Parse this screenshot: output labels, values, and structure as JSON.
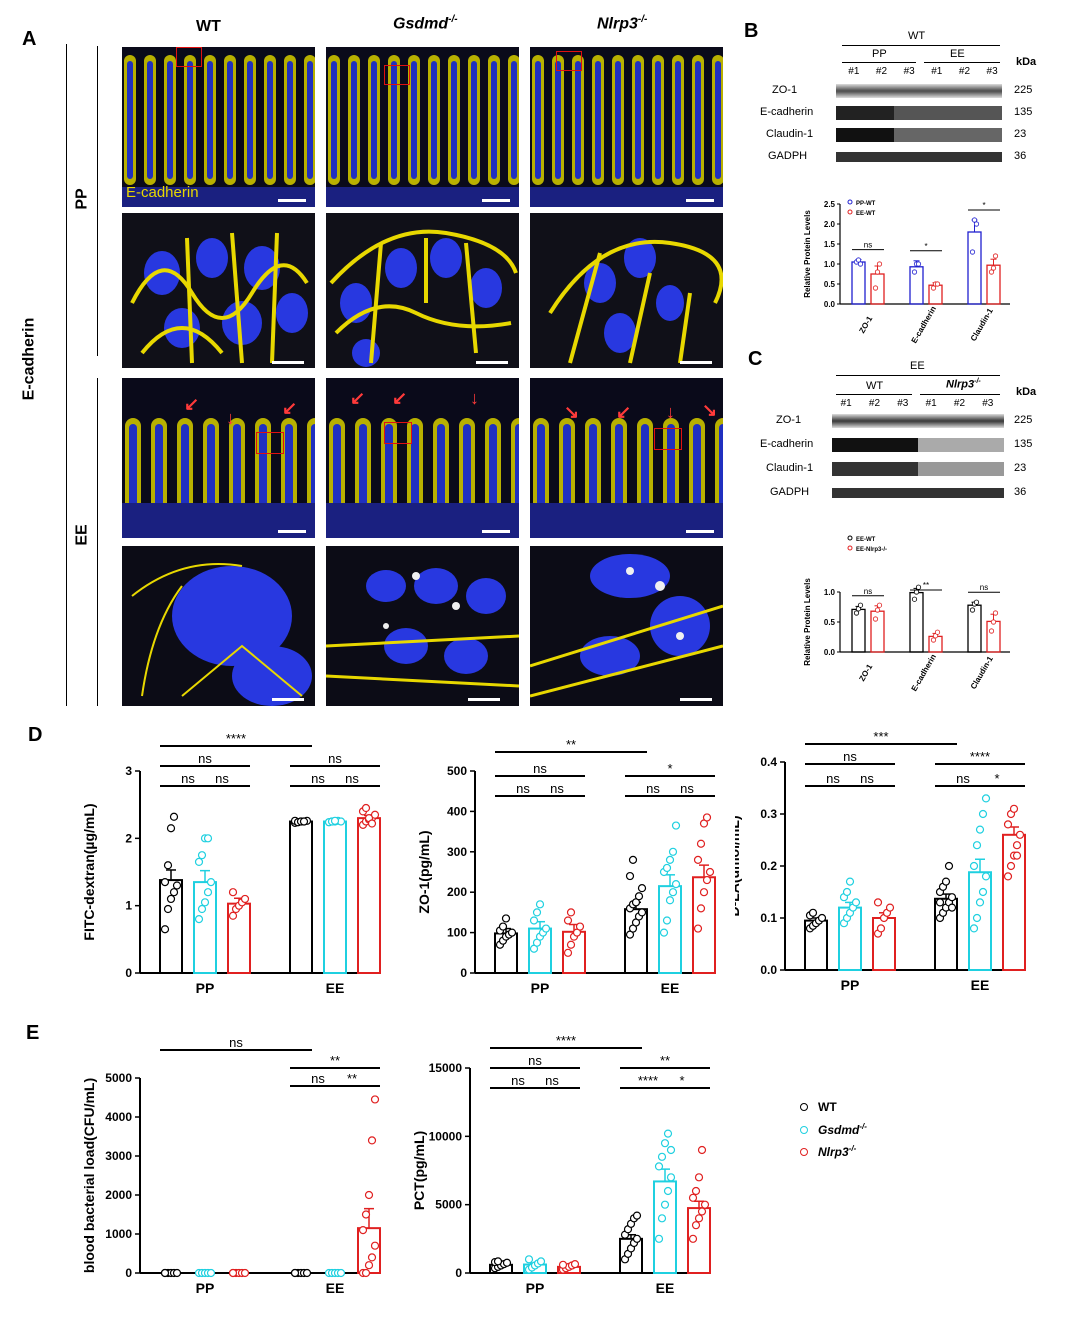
{
  "panels": {
    "A": "A",
    "B": "B",
    "C": "C",
    "D": "D",
    "E": "E"
  },
  "panelA": {
    "columns": [
      "WT",
      "Gsdmd",
      "Nlrp3"
    ],
    "col_sup": "-/-",
    "rows": [
      "PP",
      "EE"
    ],
    "side_label": "E-cadherin",
    "stain_label": "E-cadherin",
    "colors": {
      "stain": "#e8d800",
      "nuclei": "#2030d0",
      "roi": "#e01010",
      "arrow": "#ff3a3a"
    }
  },
  "panelB": {
    "group": "WT",
    "subgroups": [
      "PP",
      "EE"
    ],
    "lanes": [
      "#1",
      "#2",
      "#3",
      "#1",
      "#2",
      "#3"
    ],
    "kda": "kDa",
    "proteins": [
      {
        "name": "ZO-1",
        "kda": "225"
      },
      {
        "name": "E-cadherin",
        "kda": "135"
      },
      {
        "name": "Claudin-1",
        "kda": "23"
      },
      {
        "name": "GADPH",
        "kda": "36"
      }
    ]
  },
  "panelC": {
    "group": "EE",
    "subgroups": [
      "WT",
      "Nlrp3"
    ],
    "lanes": [
      "#1",
      "#2",
      "#3",
      "#1",
      "#2",
      "#3"
    ],
    "kda": "kDa",
    "proteins": [
      {
        "name": "ZO-1",
        "kda": "225"
      },
      {
        "name": "E-cadherin",
        "kda": "135"
      },
      {
        "name": "Claudin-1",
        "kda": "23"
      },
      {
        "name": "GADPH",
        "kda": "36"
      }
    ]
  },
  "legend_E": {
    "items": [
      {
        "name": "WT",
        "color": "#000000"
      },
      {
        "name": "Gsdmd",
        "sup": "-/-",
        "color": "#1fd0e0"
      },
      {
        "name": "Nlrp3",
        "sup": "-/-",
        "color": "#e02020"
      }
    ]
  },
  "chart_data": [
    {
      "id": "B-bar",
      "type": "bar",
      "ylabel": "Relative Protein Levels",
      "ylim": [
        0,
        2.5
      ],
      "yticks": [
        "0.0",
        "0.5",
        "1.0",
        "1.5",
        "2.0",
        "2.5"
      ],
      "categories": [
        "ZO-1",
        "E-cadherin",
        "Claudin-1"
      ],
      "series": [
        {
          "name": "PP-WT",
          "color": "#2020d0",
          "values": [
            1.05,
            0.93,
            1.8
          ],
          "err": [
            0.06,
            0.15,
            0.3
          ],
          "points": [
            [
              1.05,
              1.1,
              1.0
            ],
            [
              0.8,
              1.0,
              1.0
            ],
            [
              1.3,
              2.1,
              2.0
            ]
          ]
        },
        {
          "name": "EE-WT",
          "color": "#e02020",
          "values": [
            0.75,
            0.47,
            0.97
          ],
          "err": [
            0.2,
            0.06,
            0.15
          ],
          "points": [
            [
              0.4,
              0.8,
              1.0
            ],
            [
              0.4,
              0.5,
              0.5
            ],
            [
              0.8,
              0.9,
              1.2
            ]
          ]
        }
      ],
      "sig": [
        "ns",
        "*",
        "*"
      ]
    },
    {
      "id": "C-bar",
      "type": "bar",
      "ylabel": "Relative Protein Levels",
      "ylim": [
        0,
        1.0
      ],
      "yticks": [
        "0.0",
        "0.5",
        "1.0"
      ],
      "categories": [
        "ZO-1",
        "E-cadherin",
        "Claudin-1"
      ],
      "series": [
        {
          "name": "EE-WT",
          "color": "#000000",
          "values": [
            0.71,
            0.99,
            0.78
          ],
          "err": [
            0.05,
            0.07,
            0.05
          ],
          "points": [
            [
              0.65,
              0.72,
              0.78
            ],
            [
              0.88,
              1.0,
              1.08
            ],
            [
              0.7,
              0.8,
              0.83
            ]
          ]
        },
        {
          "name": "EE-Nlrp3",
          "sup": "-/-",
          "color": "#e02020",
          "values": [
            0.68,
            0.26,
            0.51
          ],
          "err": [
            0.09,
            0.05,
            0.12
          ],
          "points": [
            [
              0.55,
              0.7,
              0.78
            ],
            [
              0.2,
              0.27,
              0.33
            ],
            [
              0.35,
              0.5,
              0.65
            ]
          ]
        }
      ],
      "sig": [
        "ns",
        "**",
        "ns"
      ]
    },
    {
      "id": "D1",
      "type": "bar",
      "ylabel": "FITC-dextran(µg/mL)",
      "ylim": [
        0,
        3
      ],
      "yticks": [
        "0",
        "1",
        "2",
        "3"
      ],
      "categories": [
        "PP",
        "EE"
      ],
      "series": [
        {
          "name": "WT",
          "values": [
            1.38,
            2.25
          ],
          "err": [
            0.15,
            0.01
          ],
          "points": [
            [
              0.65,
              0.95,
              1.1,
              1.2,
              1.3,
              1.35,
              1.6,
              2.15,
              2.32
            ],
            [
              2.23,
              2.24,
              2.25,
              2.25,
              2.26,
              2.26,
              2.24,
              2.25,
              2.25
            ]
          ]
        },
        {
          "name": "Gsdmd",
          "values": [
            1.35,
            2.25
          ],
          "err": [
            0.17,
            0.01
          ],
          "points": [
            [
              0.8,
              0.95,
              1.05,
              1.2,
              1.35,
              1.65,
              1.75,
              2.0,
              2.0
            ],
            [
              2.24,
              2.25,
              2.25,
              2.26,
              2.25,
              2.24,
              2.25,
              2.26
            ]
          ]
        },
        {
          "name": "Nlrp3",
          "values": [
            1.03,
            2.3
          ],
          "err": [
            0.08,
            0.04
          ],
          "points": [
            [
              0.85,
              0.95,
              1.0,
              1.05,
              1.1,
              1.2
            ],
            [
              2.2,
              2.25,
              2.28,
              2.3,
              2.35,
              2.4,
              2.45,
              2.3,
              2.22
            ]
          ]
        }
      ],
      "sig_labels": [
        "****",
        "ns",
        "ns",
        "ns",
        "ns",
        "ns",
        "ns"
      ]
    },
    {
      "id": "D2",
      "type": "bar",
      "ylabel": "ZO-1(pg/mL)",
      "ylim": [
        0,
        500
      ],
      "yticks": [
        "0",
        "100",
        "200",
        "300",
        "400",
        "500"
      ],
      "categories": [
        "PP",
        "EE"
      ],
      "series": [
        {
          "name": "WT",
          "values": [
            98,
            158
          ],
          "err": [
            12,
            17
          ],
          "points": [
            [
              70,
              80,
              90,
              95,
              100,
              105,
              115,
              135
            ],
            [
              95,
              110,
              125,
              140,
              150,
              160,
              170,
              175,
              190,
              210,
              240,
              280
            ]
          ]
        },
        {
          "name": "Gsdmd",
          "values": [
            110,
            215
          ],
          "err": [
            17,
            28
          ],
          "points": [
            [
              60,
              75,
              90,
              100,
              110,
              130,
              150,
              170
            ],
            [
              100,
              130,
              180,
              200,
              220,
              250,
              260,
              280,
              300,
              365
            ]
          ]
        },
        {
          "name": "Nlrp3",
          "values": [
            102,
            237
          ],
          "err": [
            18,
            30
          ],
          "points": [
            [
              50,
              70,
              90,
              100,
              115,
              130,
              150
            ],
            [
              110,
              160,
              200,
              230,
              250,
              280,
              320,
              370,
              385
            ]
          ]
        }
      ],
      "sig_labels": [
        "**",
        "ns",
        "ns",
        "ns",
        "*",
        "ns",
        "ns"
      ]
    },
    {
      "id": "D3",
      "type": "bar",
      "ylabel": "D-LA(umol/mL)",
      "ylim": [
        0,
        0.4
      ],
      "yticks": [
        "0.0",
        "0.1",
        "0.2",
        "0.3",
        "0.4"
      ],
      "categories": [
        "PP",
        "EE"
      ],
      "series": [
        {
          "name": "WT",
          "values": [
            0.095,
            0.137
          ],
          "err": [
            0.005,
            0.009
          ],
          "points": [
            [
              0.08,
              0.085,
              0.09,
              0.095,
              0.1,
              0.105,
              0.11
            ],
            [
              0.1,
              0.11,
              0.12,
              0.13,
              0.14,
              0.15,
              0.16,
              0.17,
              0.2,
              0.12,
              0.13
            ]
          ]
        },
        {
          "name": "Gsdmd",
          "values": [
            0.12,
            0.188
          ],
          "err": [
            0.01,
            0.025
          ],
          "points": [
            [
              0.09,
              0.1,
              0.11,
              0.12,
              0.13,
              0.14,
              0.15,
              0.17
            ],
            [
              0.08,
              0.1,
              0.13,
              0.15,
              0.18,
              0.2,
              0.24,
              0.27,
              0.3,
              0.33
            ]
          ]
        },
        {
          "name": "Nlrp3",
          "values": [
            0.1,
            0.26
          ],
          "err": [
            0.01,
            0.015
          ],
          "points": [
            [
              0.07,
              0.08,
              0.1,
              0.11,
              0.12,
              0.13
            ],
            [
              0.18,
              0.2,
              0.22,
              0.24,
              0.26,
              0.28,
              0.3,
              0.31,
              0.22
            ]
          ]
        }
      ],
      "sig_labels": [
        "***",
        "ns",
        "ns",
        "ns",
        "****",
        "ns",
        "*"
      ]
    },
    {
      "id": "E1",
      "type": "bar",
      "ylabel": "blood bacterial load(CFU/mL)",
      "ylim": [
        0,
        5000
      ],
      "yticks": [
        "0",
        "1000",
        "2000",
        "3000",
        "4000",
        "5000"
      ],
      "categories": [
        "PP",
        "EE"
      ],
      "series": [
        {
          "name": "WT",
          "values": [
            0,
            0
          ],
          "err": [
            0,
            0
          ],
          "points": [
            [
              0,
              0,
              0,
              0,
              0,
              0
            ],
            [
              0,
              0,
              0,
              0,
              0,
              0
            ]
          ]
        },
        {
          "name": "Gsdmd",
          "values": [
            0,
            0
          ],
          "err": [
            0,
            0
          ],
          "points": [
            [
              0,
              0,
              0,
              0,
              0
            ],
            [
              0,
              0,
              0,
              0,
              0
            ]
          ]
        },
        {
          "name": "Nlrp3",
          "values": [
            0,
            1150
          ],
          "err": [
            0,
            500
          ],
          "points": [
            [
              0,
              0,
              0,
              0,
              0,
              0
            ],
            [
              0,
              0,
              200,
              400,
              700,
              1100,
              1500,
              2000,
              3400,
              4450
            ]
          ]
        }
      ],
      "sig_labels": [
        "ns",
        "**",
        "ns",
        "**"
      ]
    },
    {
      "id": "E2",
      "type": "bar",
      "ylabel": "PCT(pg/mL)",
      "ylim": [
        0,
        15000
      ],
      "yticks": [
        "0",
        "5000",
        "10000",
        "15000"
      ],
      "categories": [
        "PP",
        "EE"
      ],
      "series": [
        {
          "name": "WT",
          "values": [
            600,
            2500
          ],
          "err": [
            90,
            300
          ],
          "points": [
            [
              350,
              450,
              550,
              650,
              750,
              800,
              850
            ],
            [
              1000,
              1400,
              1800,
              2200,
              2500,
              2800,
              3200,
              3600,
              4000,
              4200
            ]
          ]
        },
        {
          "name": "Gsdmd",
          "values": [
            620,
            6700
          ],
          "err": [
            110,
            900
          ],
          "points": [
            [
              250,
              400,
              550,
              700,
              850,
              1000
            ],
            [
              2500,
              4000,
              5000,
              6000,
              7000,
              7800,
              8500,
              9500,
              10200,
              9000
            ]
          ]
        },
        {
          "name": "Nlrp3",
          "values": [
            450,
            4750
          ],
          "err": [
            70,
            500
          ],
          "points": [
            [
              250,
              350,
              450,
              550,
              650,
              600
            ],
            [
              2500,
              3500,
              4000,
              4500,
              5000,
              5500,
              6000,
              7000,
              9000
            ]
          ]
        }
      ],
      "sig_labels": [
        "****",
        "ns",
        "ns",
        "ns",
        "**",
        "****",
        "*"
      ]
    }
  ]
}
